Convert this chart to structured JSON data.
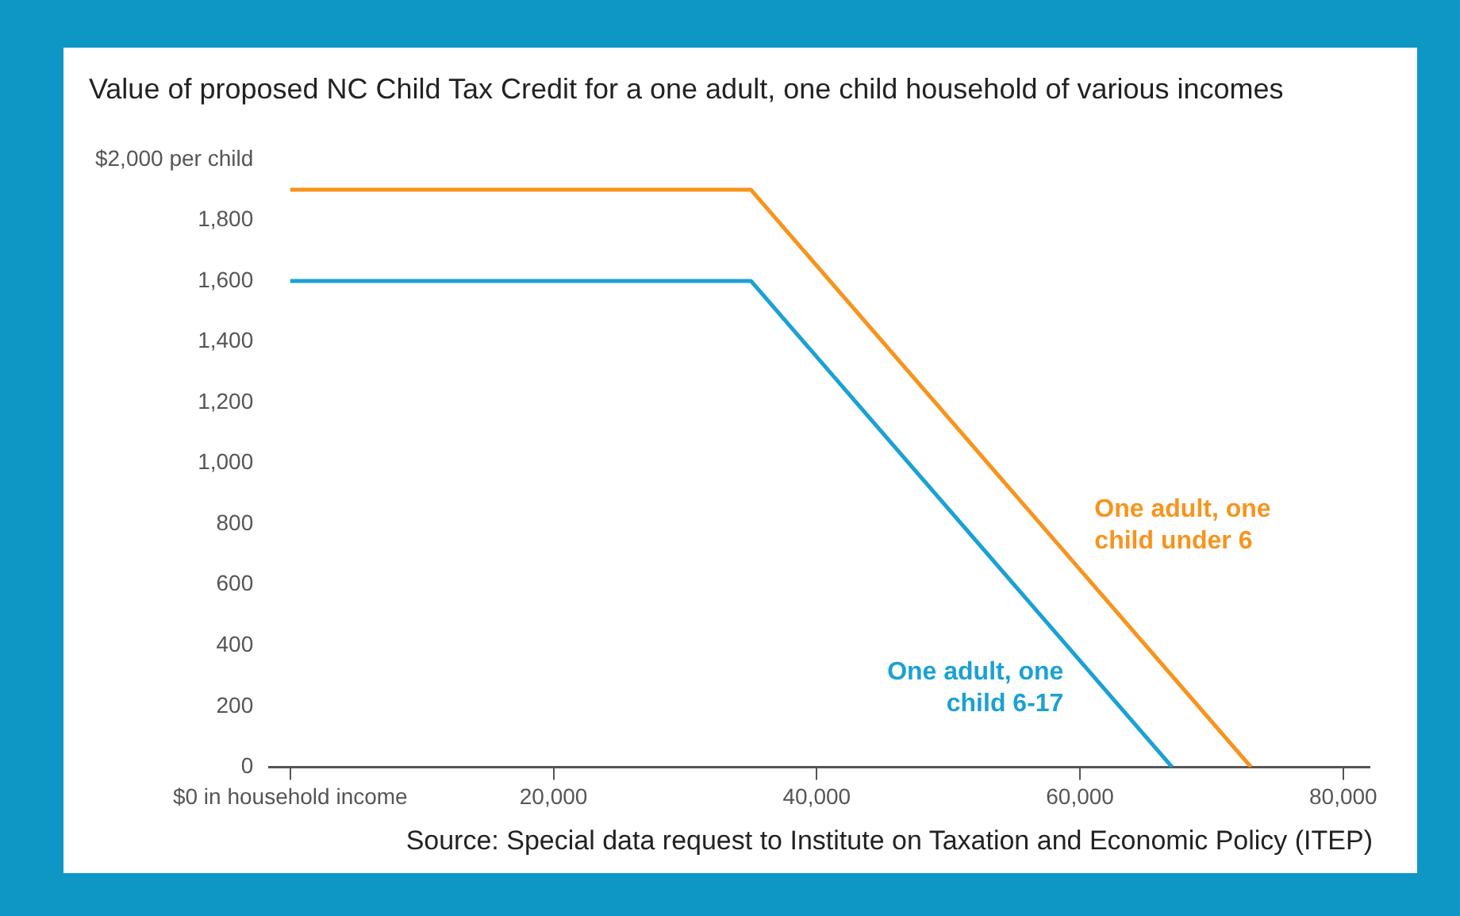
{
  "chart_data": {
    "type": "line",
    "title": "Value of proposed NC Child Tax Credit for a one adult, one child household of various incomes",
    "annotations": [
      "Source: Special data request to Institute on Taxation and Economic Policy (ITEP)"
    ],
    "series": [
      {
        "name": "One adult, one child 6-17",
        "color": "#1ba1d3",
        "x": [
          0,
          35000,
          67000
        ],
        "values": [
          1600,
          1600,
          0
        ]
      },
      {
        "name": "One adult, one child under 6",
        "color": "#f7941d",
        "x": [
          0,
          35000,
          73000
        ],
        "values": [
          1900,
          1900,
          0
        ]
      }
    ],
    "xlim": [
      -1600,
      82000
    ],
    "xticks": [
      {
        "value": 0,
        "label": "$0 in household income"
      },
      {
        "value": 20000,
        "label": "20,000"
      },
      {
        "value": 40000,
        "label": "40,000"
      },
      {
        "value": 60000,
        "label": "60,000"
      },
      {
        "value": 80000,
        "label": "80,000"
      }
    ],
    "ylim": [
      0,
      2000
    ],
    "yticks": [
      0,
      200,
      400,
      600,
      800,
      {
        "value": 1000,
        "label": "1,000"
      },
      {
        "value": 1200,
        "label": "1,200"
      },
      {
        "value": 1400,
        "label": "1,400"
      },
      {
        "value": 1600,
        "label": "1,600"
      },
      {
        "value": 1800,
        "label": "1,800"
      },
      {
        "value": 2000,
        "label": "$2,000 per child"
      }
    ],
    "grid": false,
    "legend": false,
    "marker": "none",
    "line_style": "solid"
  }
}
